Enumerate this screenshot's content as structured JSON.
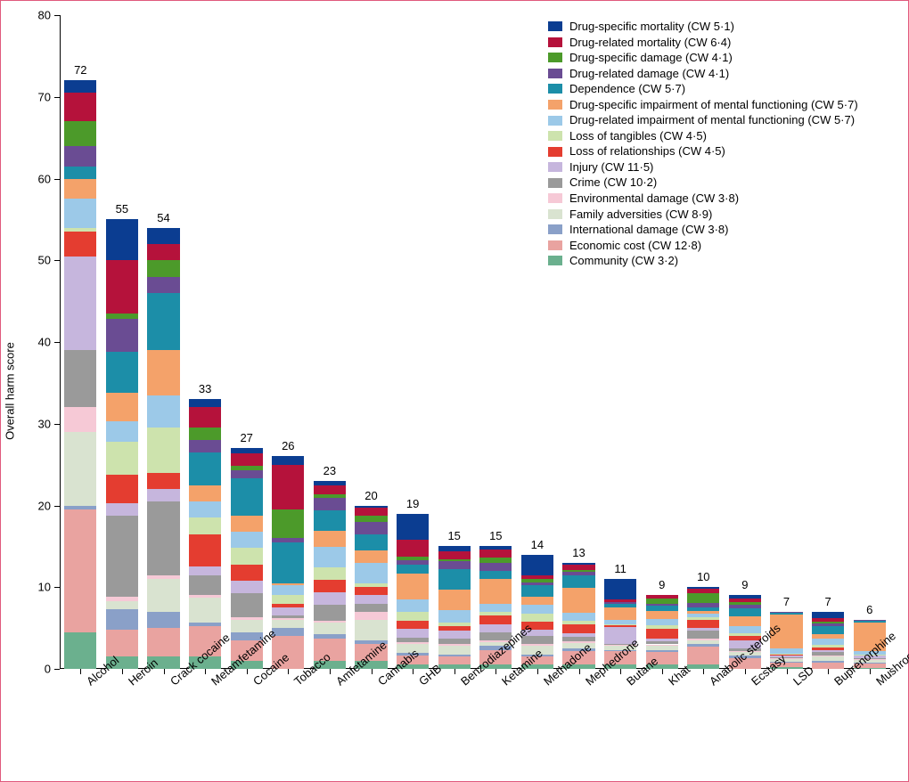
{
  "chart": {
    "type": "stacked-bar",
    "ylabel": "Overall harm score",
    "ylim": [
      0,
      80
    ],
    "ytick_step": 10,
    "background_color": "#ffffff",
    "border_color": "#e05a7d",
    "axis_color": "#000000",
    "label_fontsize": 13,
    "title_fontsize": 13,
    "bar_width_ratio": 0.78,
    "series": [
      {
        "key": "drug_specific_mortality",
        "label": "Drug-specific mortality (CW 5·1)",
        "color": "#0b3d91"
      },
      {
        "key": "drug_related_mortality",
        "label": "Drug-related mortality (CW 6·4)",
        "color": "#b5123b"
      },
      {
        "key": "drug_specific_damage",
        "label": "Drug-specific damage (CW 4·1)",
        "color": "#4c9a2a"
      },
      {
        "key": "drug_related_damage",
        "label": "Drug-related damage (CW 4·1)",
        "color": "#6a4c93"
      },
      {
        "key": "dependence",
        "label": "Dependence (CW 5·7)",
        "color": "#1c8ea8"
      },
      {
        "key": "dsimf",
        "label": "Drug-specific impairment of mental functioning (CW 5·7)",
        "color": "#f4a26a"
      },
      {
        "key": "drimf",
        "label": "Drug-related impairment of mental functioning (CW 5·7)",
        "color": "#9cc9e8"
      },
      {
        "key": "loss_tangibles",
        "label": "Loss of tangibles (CW 4·5)",
        "color": "#cde3ad"
      },
      {
        "key": "loss_relationships",
        "label": "Loss of relationships (CW 4·5)",
        "color": "#e43d30"
      },
      {
        "key": "injury",
        "label": "Injury (CW 11·5)",
        "color": "#c6b6dd"
      },
      {
        "key": "crime",
        "label": "Crime (CW 10·2)",
        "color": "#9a9a9a"
      },
      {
        "key": "environmental_damage",
        "label": "Environmental damage (CW 3·8)",
        "color": "#f6c9d6"
      },
      {
        "key": "family_adversities",
        "label": "Family adversities (CW 8·9)",
        "color": "#d9e3d0"
      },
      {
        "key": "international_damage",
        "label": "International damage (CW 3·8)",
        "color": "#8aa0c8"
      },
      {
        "key": "economic_cost",
        "label": "Economic cost (CW 12·8)",
        "color": "#e9a3a0"
      },
      {
        "key": "community",
        "label": "Community (CW 3·2)",
        "color": "#6bb08e"
      }
    ],
    "categories": [
      "Alcohol",
      "Heroin",
      "Crack cocaine",
      "Metamfetamine",
      "Cocaine",
      "Tobacco",
      "Amfetamine",
      "Cannabis",
      "GHB",
      "Benzodiazepines",
      "Ketamine",
      "Methadone",
      "Mephedrone",
      "Butane",
      "Khat",
      "Anabolic steroids",
      "Ecstasy",
      "LSD",
      "Buprenorphine",
      "Mushrooms"
    ],
    "totals": [
      72,
      55,
      54,
      33,
      27,
      26,
      23,
      20,
      19,
      15,
      15,
      14,
      13,
      11,
      9,
      10,
      9,
      7,
      7,
      6
    ],
    "values": {
      "drug_specific_mortality": [
        1.5,
        5.0,
        2.0,
        1.0,
        0.6,
        1.0,
        0.6,
        0.3,
        3.0,
        0.6,
        0.4,
        2.5,
        0.3,
        2.5,
        0.0,
        0.2,
        0.4,
        0.0,
        0.8,
        0.0
      ],
      "drug_related_mortality": [
        3.5,
        6.5,
        2.0,
        2.5,
        1.6,
        5.5,
        1.0,
        1.0,
        2.0,
        1.0,
        1.0,
        0.5,
        0.6,
        0.3,
        0.4,
        0.5,
        0.4,
        0.0,
        0.4,
        0.0
      ],
      "drug_specific_damage": [
        3.0,
        0.7,
        2.0,
        1.5,
        0.5,
        3.5,
        0.5,
        0.7,
        0.4,
        0.2,
        0.6,
        0.4,
        0.2,
        0.0,
        0.6,
        1.2,
        0.3,
        0.0,
        0.2,
        0.0
      ],
      "drug_related_damage": [
        2.5,
        4.0,
        2.0,
        1.5,
        1.0,
        0.5,
        1.5,
        1.5,
        0.5,
        1.0,
        1.0,
        0.3,
        0.5,
        0.2,
        0.3,
        0.6,
        0.5,
        0.1,
        0.4,
        0.1
      ],
      "dependence": [
        1.5,
        5.0,
        7.0,
        4.0,
        4.5,
        5.0,
        2.5,
        2.0,
        1.0,
        2.5,
        1.0,
        1.5,
        1.5,
        0.5,
        0.6,
        0.4,
        1.0,
        0.2,
        1.0,
        0.2
      ],
      "dsimf": [
        2.5,
        3.5,
        5.5,
        2.0,
        2.0,
        0.3,
        2.0,
        1.5,
        3.0,
        2.5,
        3.0,
        1.0,
        3.0,
        1.5,
        1.0,
        0.3,
        1.2,
        4.2,
        0.5,
        3.5
      ],
      "drimf": [
        3.5,
        2.5,
        4.0,
        2.0,
        2.0,
        1.2,
        2.5,
        2.5,
        1.5,
        1.5,
        1.0,
        1.0,
        1.0,
        0.5,
        0.8,
        0.5,
        0.8,
        0.6,
        0.8,
        0.4
      ],
      "loss_tangibles": [
        0.5,
        4.0,
        5.5,
        2.0,
        2.0,
        1.0,
        1.5,
        0.5,
        1.0,
        0.5,
        0.5,
        1.0,
        0.5,
        0.2,
        0.4,
        0.3,
        0.4,
        0.1,
        0.3,
        0.1
      ],
      "loss_relationships": [
        3.0,
        3.5,
        2.0,
        4.0,
        2.0,
        0.5,
        1.5,
        1.0,
        1.0,
        0.5,
        1.0,
        1.0,
        1.0,
        0.2,
        1.2,
        1.0,
        0.5,
        0.1,
        0.3,
        0.1
      ],
      "injury": [
        11.5,
        1.5,
        1.5,
        1.0,
        1.5,
        1.0,
        1.5,
        1.0,
        1.0,
        1.0,
        1.0,
        0.8,
        0.5,
        2.0,
        0.3,
        0.3,
        1.0,
        0.3,
        0.2,
        0.3
      ],
      "crime": [
        7.0,
        10.0,
        9.0,
        2.5,
        3.0,
        0.3,
        2.0,
        1.0,
        0.5,
        0.7,
        1.0,
        1.0,
        0.5,
        0.2,
        0.4,
        1.0,
        0.3,
        0.1,
        0.5,
        0.1
      ],
      "environmental_damage": [
        3.0,
        0.5,
        0.5,
        0.3,
        0.3,
        0.2,
        0.2,
        1.0,
        0.2,
        0.2,
        0.2,
        0.2,
        0.2,
        0.1,
        0.1,
        0.2,
        0.1,
        0.1,
        0.1,
        0.1
      ],
      "family_adversities": [
        9.0,
        1.0,
        4.0,
        3.0,
        1.5,
        1.0,
        1.5,
        2.5,
        1.0,
        1.0,
        0.5,
        1.0,
        0.7,
        0.5,
        0.6,
        0.5,
        0.5,
        0.3,
        0.5,
        0.3
      ],
      "international_damage": [
        0.5,
        2.5,
        2.0,
        0.5,
        1.0,
        1.0,
        0.5,
        0.5,
        0.3,
        0.3,
        0.5,
        0.3,
        0.3,
        0.1,
        0.2,
        0.3,
        0.3,
        0.1,
        0.2,
        0.1
      ],
      "economic_cost": [
        15.0,
        3.3,
        3.5,
        3.7,
        2.5,
        4.0,
        2.7,
        2.0,
        1.1,
        1.0,
        1.8,
        1.0,
        1.7,
        1.7,
        1.6,
        2.2,
        1.3,
        0.6,
        0.8,
        0.6
      ],
      "community": [
        4.5,
        1.5,
        1.5,
        1.5,
        1.0,
        0.0,
        1.0,
        1.0,
        0.5,
        0.5,
        0.5,
        0.5,
        0.5,
        0.5,
        0.5,
        0.5,
        0.0,
        0.2,
        0.0,
        0.1
      ]
    }
  }
}
